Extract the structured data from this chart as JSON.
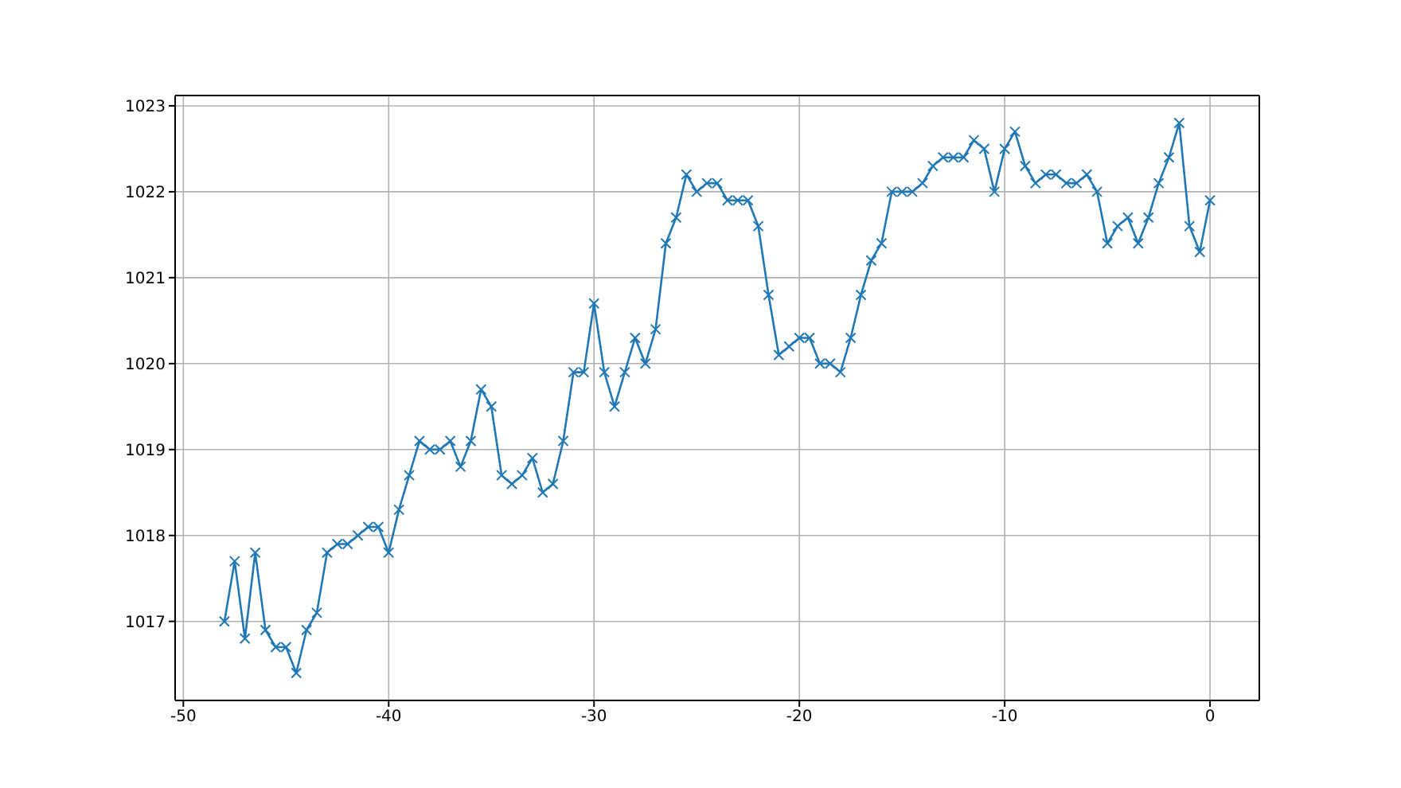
{
  "chart_data": {
    "type": "line",
    "x": [
      -48,
      -47.5,
      -47,
      -46.5,
      -46,
      -45.5,
      -45,
      -44.5,
      -44,
      -43.5,
      -43,
      -42.5,
      -42,
      -41.5,
      -41,
      -40.5,
      -40,
      -39.5,
      -39,
      -38.5,
      -38,
      -37.5,
      -37,
      -36.5,
      -36,
      -35.5,
      -35,
      -34.5,
      -34,
      -33.5,
      -33,
      -32.5,
      -32,
      -31.5,
      -31,
      -30.5,
      -30,
      -29.5,
      -29,
      -28.5,
      -28,
      -27.5,
      -27,
      -26.5,
      -26,
      -25.5,
      -25,
      -24.5,
      -24,
      -23.5,
      -23,
      -22.5,
      -22,
      -21.5,
      -21,
      -20.5,
      -20,
      -19.5,
      -19,
      -18.5,
      -18,
      -17.5,
      -17,
      -16.5,
      -16,
      -15.5,
      -15,
      -14.5,
      -14,
      -13.5,
      -13,
      -12.5,
      -12,
      -11.5,
      -11,
      -10.5,
      -10,
      -9.5,
      -9,
      -8.5,
      -8,
      -7.5,
      -7,
      -6.5,
      -6,
      -5.5,
      -5,
      -4.5,
      -4,
      -3.5,
      -3,
      -2.5,
      -2,
      -1.5,
      -1,
      -0.5,
      0
    ],
    "series": [
      {
        "color": "#1f77b4",
        "values": [
          1017.0,
          1017.7,
          1016.8,
          1017.8,
          1016.9,
          1016.7,
          1016.7,
          1016.4,
          1016.9,
          1017.1,
          1017.8,
          1017.9,
          1017.9,
          1018.0,
          1018.1,
          1018.1,
          1017.8,
          1018.3,
          1018.7,
          1019.1,
          1019.0,
          1019.0,
          1019.1,
          1018.8,
          1019.1,
          1019.7,
          1019.5,
          1018.7,
          1018.6,
          1018.7,
          1018.9,
          1018.5,
          1018.6,
          1019.1,
          1019.9,
          1019.9,
          1020.7,
          1019.9,
          1019.5,
          1019.9,
          1020.3,
          1020.0,
          1020.4,
          1021.4,
          1021.7,
          1022.2,
          1022.0,
          1022.1,
          1022.1,
          1021.9,
          1021.9,
          1021.9,
          1021.6,
          1020.8,
          1020.1,
          1020.2,
          1020.3,
          1020.3,
          1020.0,
          1020.0,
          1019.9,
          1020.3,
          1020.8,
          1021.2,
          1021.4,
          1022.0,
          1022.0,
          1022.0,
          1022.1,
          1022.3,
          1022.4,
          1022.4,
          1022.4,
          1022.6,
          1022.5,
          1022.0,
          1022.5,
          1022.7,
          1022.3,
          1022.1,
          1022.2,
          1022.2,
          1022.1,
          1022.1,
          1022.2,
          1022.0,
          1021.4,
          1021.6,
          1021.7,
          1021.4,
          1021.7,
          1022.1,
          1022.4,
          1022.8,
          1021.6,
          1021.3,
          1021.9
        ]
      }
    ],
    "xlim": [
      -50.4,
      2.4
    ],
    "xticks": [
      -50,
      -40,
      -30,
      -20,
      -10,
      0
    ],
    "ylim": [
      1016.08,
      1023.12
    ],
    "yticks": [
      1017,
      1018,
      1019,
      1020,
      1021,
      1022,
      1023
    ],
    "grid": true,
    "marker": "cross",
    "line_style": "solid",
    "legend": false
  }
}
